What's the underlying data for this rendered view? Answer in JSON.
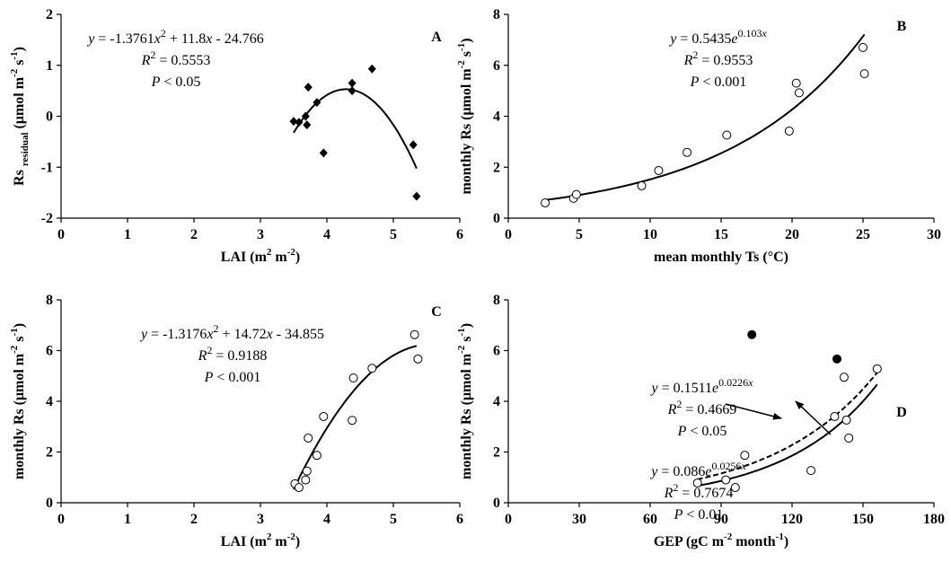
{
  "colors": {
    "ink": "#000000",
    "background": "#ffffff",
    "hollow_marker_fill": "#ffffff"
  },
  "chart_data": [
    {
      "id": "A",
      "type": "scatter",
      "panel_label": "A",
      "xlabel_parts": [
        "LAI (m",
        "2",
        " m",
        "-2",
        ")"
      ],
      "ylabel_parts": [
        "Rs ",
        "residual",
        " (μmol m",
        "-2",
        " s",
        "-1",
        ")"
      ],
      "xlim": [
        0,
        6
      ],
      "ylim": [
        -2,
        2
      ],
      "xticks": [
        0,
        1,
        2,
        3,
        4,
        5,
        6
      ],
      "yticks": [
        -2,
        -1,
        0,
        1,
        2
      ],
      "marker": "filled-diamond",
      "points": [
        [
          3.5,
          -0.1
        ],
        [
          3.58,
          -0.12
        ],
        [
          3.68,
          0.0
        ],
        [
          3.7,
          -0.17
        ],
        [
          3.72,
          0.57
        ],
        [
          3.85,
          0.27
        ],
        [
          3.95,
          -0.72
        ],
        [
          4.38,
          0.5
        ],
        [
          4.38,
          0.65
        ],
        [
          4.68,
          0.93
        ],
        [
          5.3,
          -0.56
        ],
        [
          5.35,
          -1.57
        ]
      ],
      "fits": [
        {
          "kind": "poly2",
          "coef": [
            -1.3761,
            11.8,
            -24.766
          ],
          "x_range": [
            3.5,
            5.35
          ],
          "style": "solid"
        }
      ],
      "annotations": [
        {
          "lines": [
            {
              "segments": [
                {
                  "t": "y",
                  "i": true
                },
                {
                  "t": " = -1.3761"
                },
                {
                  "t": "x",
                  "i": true
                },
                {
                  "t": "2",
                  "sup": true
                },
                {
                  "t": " + 11.8"
                },
                {
                  "t": "x",
                  "i": true
                },
                {
                  "t": " - 24.766"
                }
              ]
            },
            {
              "segments": [
                {
                  "t": "R",
                  "i": true
                },
                {
                  "t": "2",
                  "sup": true
                },
                {
                  "t": " = 0.5553"
                }
              ]
            },
            {
              "segments": [
                {
                  "t": "P",
                  "i": true
                },
                {
                  "t": " < 0.05"
                }
              ]
            }
          ]
        }
      ]
    },
    {
      "id": "B",
      "type": "scatter",
      "panel_label": "B",
      "xlabel_parts": [
        "mean monthly  Ts (°C)"
      ],
      "ylabel_parts": [
        "monthly  Rs (μmol m",
        "-2",
        " s",
        "-1",
        ")"
      ],
      "xlim": [
        0,
        30
      ],
      "ylim": [
        0,
        8
      ],
      "xticks": [
        0,
        5,
        10,
        15,
        20,
        25,
        30
      ],
      "yticks": [
        0,
        2,
        4,
        6,
        8
      ],
      "marker": "open-circle",
      "points": [
        [
          2.6,
          0.6
        ],
        [
          4.6,
          0.78
        ],
        [
          4.8,
          0.93
        ],
        [
          9.4,
          1.27
        ],
        [
          10.6,
          1.87
        ],
        [
          12.6,
          2.58
        ],
        [
          15.4,
          3.26
        ],
        [
          19.8,
          3.42
        ],
        [
          20.3,
          5.3
        ],
        [
          20.5,
          4.92
        ],
        [
          25.0,
          6.7
        ],
        [
          25.1,
          5.67
        ]
      ],
      "fits": [
        {
          "kind": "exp",
          "a": 0.5435,
          "b": 0.103,
          "x_range": [
            2.6,
            25.1
          ],
          "style": "solid"
        }
      ],
      "annotations": [
        {
          "lines": [
            {
              "segments": [
                {
                  "t": "y",
                  "i": true
                },
                {
                  "t": " = 0.5435"
                },
                {
                  "t": "e",
                  "i": true
                },
                {
                  "t": "0.103",
                  "sup": true
                },
                {
                  "t": "x",
                  "sup": true,
                  "i": true
                }
              ]
            },
            {
              "segments": [
                {
                  "t": "R",
                  "i": true
                },
                {
                  "t": "2",
                  "sup": true
                },
                {
                  "t": " = 0.9553"
                }
              ]
            },
            {
              "segments": [
                {
                  "t": "P",
                  "i": true
                },
                {
                  "t": " < 0.001"
                }
              ]
            }
          ]
        }
      ]
    },
    {
      "id": "C",
      "type": "scatter",
      "panel_label": "C",
      "xlabel_parts": [
        "LAI (m",
        "2",
        " m",
        "-2",
        ")"
      ],
      "ylabel_parts": [
        "monthly  Rs (μmol m",
        "-2",
        " s",
        "-1",
        ")"
      ],
      "xlim": [
        0,
        6
      ],
      "ylim": [
        0,
        8
      ],
      "xticks": [
        0,
        1,
        2,
        3,
        4,
        5,
        6
      ],
      "yticks": [
        0,
        2,
        4,
        6,
        8
      ],
      "marker": "open-circle",
      "points": [
        [
          3.52,
          0.75
        ],
        [
          3.58,
          0.6
        ],
        [
          3.68,
          0.9
        ],
        [
          3.7,
          1.25
        ],
        [
          3.72,
          2.55
        ],
        [
          3.85,
          1.87
        ],
        [
          3.95,
          3.4
        ],
        [
          4.38,
          3.25
        ],
        [
          4.4,
          4.92
        ],
        [
          4.68,
          5.3
        ],
        [
          5.32,
          6.63
        ],
        [
          5.37,
          5.67
        ]
      ],
      "fits": [
        {
          "kind": "poly2",
          "coef": [
            -1.3176,
            14.72,
            -34.855
          ],
          "x_range": [
            3.5,
            5.35
          ],
          "style": "solid"
        }
      ],
      "annotations": [
        {
          "lines": [
            {
              "segments": [
                {
                  "t": "y",
                  "i": true
                },
                {
                  "t": " = -1.3176"
                },
                {
                  "t": "x",
                  "i": true
                },
                {
                  "t": "2",
                  "sup": true
                },
                {
                  "t": " + 14.72"
                },
                {
                  "t": "x",
                  "i": true
                },
                {
                  "t": " - 34.855"
                }
              ]
            },
            {
              "segments": [
                {
                  "t": "R",
                  "i": true
                },
                {
                  "t": "2",
                  "sup": true
                },
                {
                  "t": " = 0.9188"
                }
              ]
            },
            {
              "segments": [
                {
                  "t": "P",
                  "i": true
                },
                {
                  "t": " < 0.001"
                }
              ]
            }
          ]
        }
      ]
    },
    {
      "id": "D",
      "type": "scatter",
      "panel_label": "D",
      "xlabel_parts": [
        "GEP (gC m",
        "-2",
        " month",
        "-1",
        ")"
      ],
      "ylabel_parts": [
        "monthly  Rs (μmol m",
        "-2",
        " s",
        "-1",
        ")"
      ],
      "xlim": [
        0,
        180
      ],
      "ylim": [
        0,
        8
      ],
      "xticks": [
        0,
        30,
        60,
        90,
        120,
        150,
        180
      ],
      "yticks": [
        0,
        2,
        4,
        6,
        8
      ],
      "series": [
        {
          "marker": "open-circle",
          "points": [
            [
              80,
              0.78
            ],
            [
              92,
              0.9
            ],
            [
              96,
              0.6
            ],
            [
              100,
              1.87
            ],
            [
              128,
              1.27
            ],
            [
              138,
              3.4
            ],
            [
              142,
              4.95
            ],
            [
              143,
              3.26
            ],
            [
              144,
              2.55
            ],
            [
              156,
              5.28
            ]
          ]
        },
        {
          "marker": "filled-circle",
          "points": [
            [
              103,
              6.63
            ],
            [
              139,
              5.67
            ]
          ]
        }
      ],
      "fits": [
        {
          "kind": "exp",
          "a": 0.1511,
          "b": 0.0226,
          "x_range": [
            80,
            156
          ],
          "style": "dashed"
        },
        {
          "kind": "exp",
          "a": 0.086,
          "b": 0.0256,
          "x_range": [
            80,
            156
          ],
          "style": "solid"
        }
      ],
      "annotations": [
        {
          "lines": [
            {
              "segments": [
                {
                  "t": "y",
                  "i": true
                },
                {
                  "t": " = 0.1511"
                },
                {
                  "t": "e",
                  "i": true
                },
                {
                  "t": "0.0226",
                  "sup": true
                },
                {
                  "t": "x",
                  "sup": true,
                  "i": true
                }
              ]
            },
            {
              "segments": [
                {
                  "t": "R",
                  "i": true
                },
                {
                  "t": "2",
                  "sup": true
                },
                {
                  "t": " = 0.4669"
                }
              ]
            },
            {
              "segments": [
                {
                  "t": "P",
                  "i": true
                },
                {
                  "t": " < 0.05"
                }
              ]
            }
          ]
        },
        {
          "lines": [
            {
              "segments": [
                {
                  "t": "y",
                  "i": true
                },
                {
                  "t": " = 0.086"
                },
                {
                  "t": "e",
                  "i": true
                },
                {
                  "t": "0.0256",
                  "sup": true
                },
                {
                  "t": "x",
                  "sup": true,
                  "i": true
                }
              ]
            },
            {
              "segments": [
                {
                  "t": "R",
                  "i": true
                },
                {
                  "t": "2",
                  "sup": true
                },
                {
                  "t": " = 0.7674"
                }
              ]
            },
            {
              "segments": [
                {
                  "t": "P",
                  "i": true
                },
                {
                  "t": " < 0.01"
                }
              ]
            }
          ]
        }
      ]
    }
  ]
}
